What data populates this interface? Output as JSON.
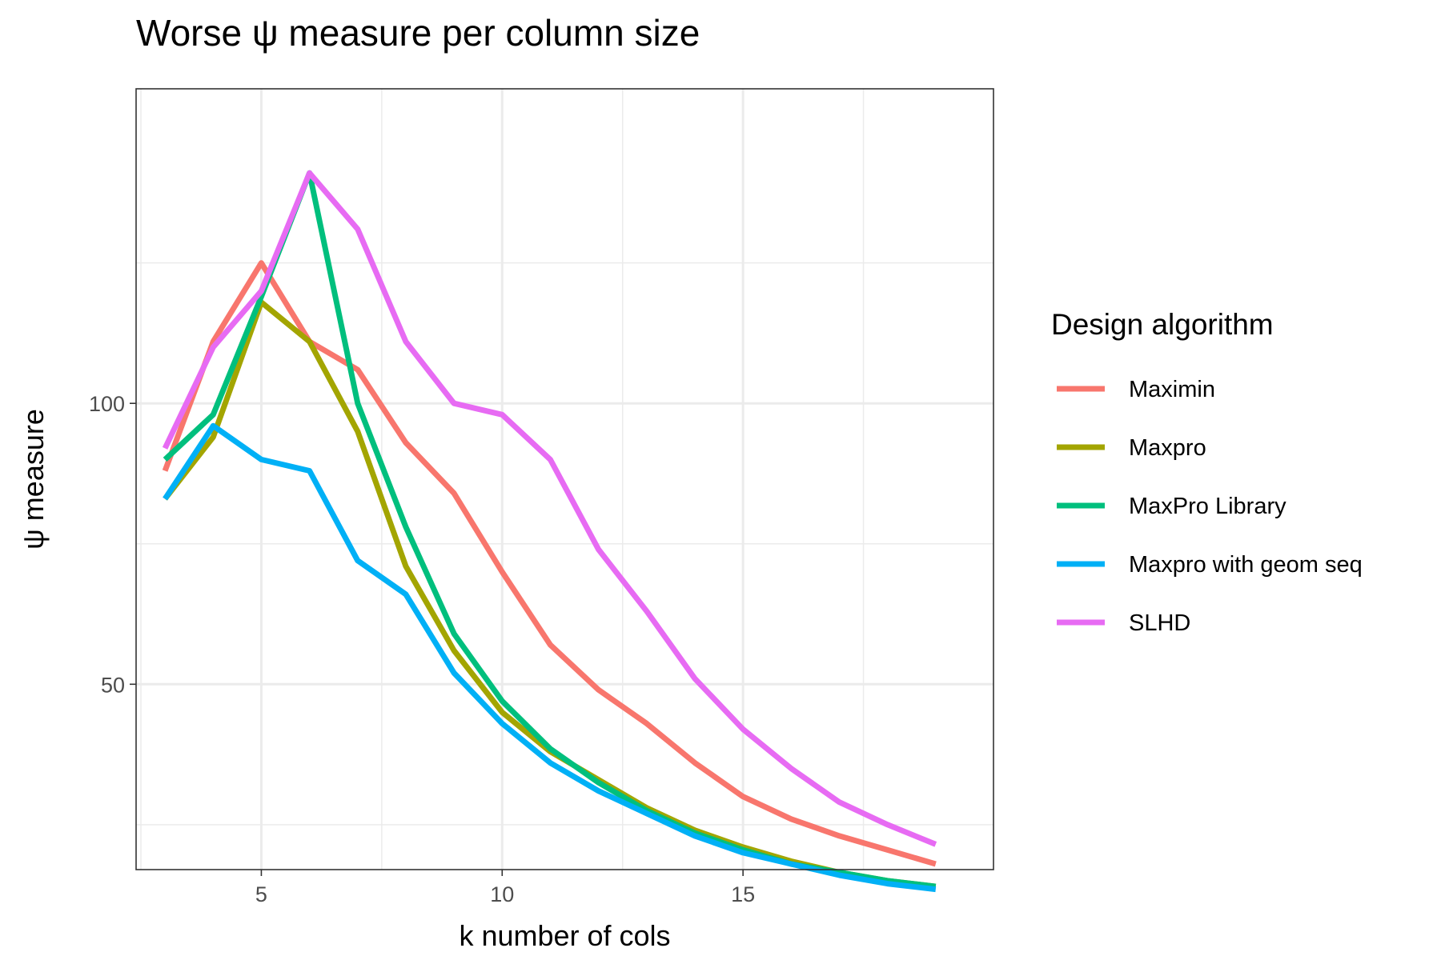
{
  "chart_data": {
    "type": "line",
    "title": "Worse  ψ  measure per column size",
    "xlabel": "k number of cols",
    "ylabel": "ψ  measure",
    "xlim": [
      2.4,
      20.2
    ],
    "ylim": [
      17,
      156
    ],
    "x_ticks": [
      5,
      10,
      15
    ],
    "x_tick_labels": [
      "5",
      "10",
      "15"
    ],
    "y_ticks": [
      50,
      100
    ],
    "y_tick_labels": [
      "50",
      "100"
    ],
    "grid": true,
    "legend": {
      "title": "Design algorithm",
      "placement": "right"
    },
    "x": [
      3,
      4,
      5,
      6,
      7,
      8,
      9,
      10,
      11,
      12,
      13,
      14,
      15,
      16,
      17,
      18,
      19
    ],
    "series": [
      {
        "name": "Maximin",
        "color": "#F8766D",
        "values": [
          88,
          111,
          125,
          111,
          106,
          93,
          84,
          70,
          57,
          49,
          43,
          36,
          30,
          26,
          23,
          20.5,
          18
        ]
      },
      {
        "name": "Maxpro",
        "color": "#A3A500",
        "values": [
          83,
          94,
          118,
          111,
          95,
          71,
          56,
          45,
          38,
          33,
          28,
          24,
          21,
          18.5,
          16.5,
          15,
          14
        ]
      },
      {
        "name": "MaxPro Library",
        "color": "#00BF7D",
        "values": [
          90,
          98,
          119,
          141,
          100,
          78,
          59,
          47,
          38.5,
          32.5,
          27.5,
          23.5,
          20.5,
          18,
          16.5,
          15,
          14
        ]
      },
      {
        "name": "Maxpro with geom seq",
        "color": "#00B0F6",
        "values": [
          83,
          96,
          90,
          88,
          72,
          66,
          52,
          43,
          36,
          31,
          27,
          23,
          20,
          18,
          16,
          14.5,
          13.5
        ]
      },
      {
        "name": "SLHD",
        "color": "#E76BF3",
        "values": [
          92,
          110,
          120,
          141,
          131,
          111,
          100,
          98,
          90,
          74,
          63,
          51,
          42,
          35,
          29,
          25,
          21.5
        ]
      }
    ]
  }
}
